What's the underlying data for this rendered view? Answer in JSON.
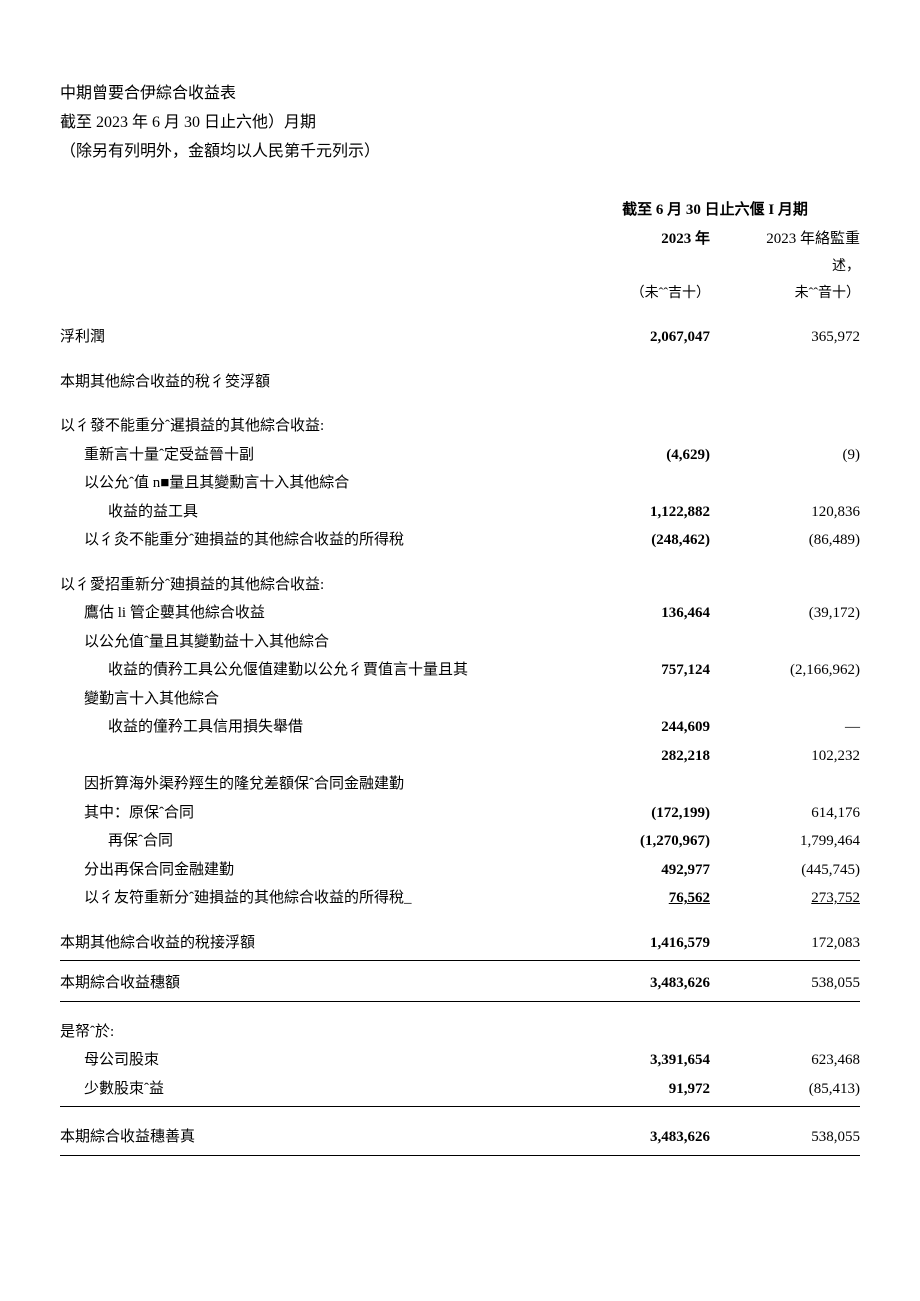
{
  "header": {
    "title": "中期曾要合伊綜合收益表",
    "subtitle": "截至 2023 年 6 月 30 日止六他）月期",
    "note": "（除另有列明外，金額均以人民第千元列示）"
  },
  "columns": {
    "period_header": "截至 6 月 30 日止六偃 I 月期",
    "year1": "2023 年",
    "year2": "2023 年絡監重",
    "sub1": "（未ˆˆ吉十）",
    "sub2_a": "述，",
    "sub2_b": "未ˆˆ音十）"
  },
  "rows": {
    "profit": {
      "label": "浮利潤",
      "v1": "2,067,047",
      "v2": "365,972"
    },
    "oci_section_header": "本期其他綜合收益的稅彳筊浮額",
    "nonreclass_header": "以彳發不能重分ˆ暹損益的其他綜合收益:",
    "remeasure": {
      "label": "重新言十量ˆ定受益晉十副",
      "v1": "(4,629)",
      "v2": "(9)"
    },
    "fv_oci_header": "以公允ˆ值 n■量且其變勳言十入其他綜合",
    "fv_oci": {
      "label": "收益的益工具",
      "v1": "1,122,882",
      "v2": "120,836"
    },
    "tax_nonreclass": {
      "label": "以彳灸不能重分ˆ廸損益的其他綜合收益的所得稅",
      "v1": "(248,462)",
      "v2": "(86,489)"
    },
    "reclass_header": "以彳愛招重新分ˆ廸損益的其他綜合收益:",
    "assoc": {
      "label": "鷹估 li 管企蘡其他綜合收益",
      "v1": "136,464",
      "v2": "(39,172)"
    },
    "fv_debt_header": "以公允值ˆ量且其變勤益十入其他綜合",
    "fv_debt": {
      "label": "收益的債矜工具公允偃值建勤以公允彳賈值言十量且其",
      "v1": "757,124",
      "v2": "(2,166,962)"
    },
    "change_header": "變勤言十入其他綜合",
    "impair": {
      "label": "收益的僮矜工具信用損失舉借",
      "v1": "244,609",
      "v2": "—"
    },
    "blank_val": {
      "v1": "282,218",
      "v2": "102,232"
    },
    "exchange": {
      "label": "因折算海外渠矜羥生的隆兌差額保ˆ合同金融建勤",
      "v1": "",
      "v2": ""
    },
    "orig": {
      "label": "其中：原保ˆ合同",
      "v1": "(172,199)",
      "v2": "614,176"
    },
    "reins": {
      "label": "再保ˆ合同",
      "v1": "(1,270,967)",
      "v2": "1,799,464"
    },
    "ceded": {
      "label": "分出再保合同金融建勤",
      "v1": "492,977",
      "v2": "(445,745)"
    },
    "tax_reclass": {
      "label": "以彳友符重新分ˆ廸損益的其他綜合收益的所得稅_",
      "v1": "76,562",
      "v2": "273,752"
    },
    "oci_total": {
      "label": "本期其他綜合收益的稅接浮額",
      "v1": "1,416,579",
      "v2": "172,083"
    },
    "comp_total": {
      "label": "本期綜合收益穗額",
      "v1": "3,483,626",
      "v2": "538,055"
    },
    "attrib_header": "是帑ˆ於:",
    "parent": {
      "label": "母公司股朿",
      "v1": "3,391,654",
      "v2": "623,468"
    },
    "minority": {
      "label": "少數股朿ˆ益",
      "v1": "91,972",
      "v2": "(85,413)"
    },
    "comp_total2": {
      "label": "本期綜合收益穗善真",
      "v1": "3,483,626",
      "v2": "538,055"
    }
  }
}
